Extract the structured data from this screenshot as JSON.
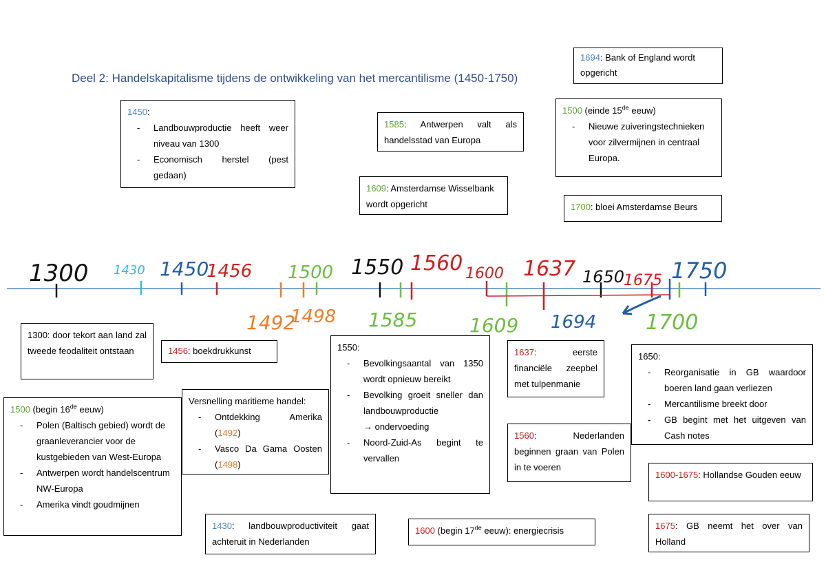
{
  "title": "Deel 2: Handelskapitalisme tijdens de ontwikkeling van het mercantilisme (1450-1750)",
  "top_boxes": {
    "b1450": {
      "year": "1450",
      "items": [
        "Landbouwproductie heeft weer niveau van 1300",
        "Economisch herstel (pest gedaan)"
      ]
    },
    "b1585": {
      "year": "1585",
      "text": ": Antwerpen valt als handelsstad van Europa"
    },
    "b1609": {
      "year": "1609",
      "text": ": Amsterdamse Wisselbank wordt opgericht"
    },
    "b1694": {
      "year": "1694",
      "text": ": Bank of England wordt opgericht"
    },
    "b1500e": {
      "year": "1500",
      "pre": " (einde 15",
      "sup": "de",
      "post": " eeuw)",
      "items": [
        "Nieuwe zuiveringstechnieken voor zilvermijnen in centraal Europa."
      ]
    },
    "b1700": {
      "year": "1700",
      "text": ": bloei Amsterdamse Beurs"
    }
  },
  "timeline": {
    "line_color": "#2e6fb5",
    "marks": [
      {
        "label": "1300",
        "color": "#111111",
        "pos": "top"
      },
      {
        "label": "1430",
        "color": "#35b8e8",
        "pos": "top"
      },
      {
        "label": "1450",
        "color": "#1f5fa8",
        "pos": "top"
      },
      {
        "label": "1456",
        "color": "#d41c1c",
        "pos": "top"
      },
      {
        "label": "1492",
        "color": "#f07d25",
        "pos": "bottom"
      },
      {
        "label": "1498",
        "color": "#f07d25",
        "pos": "bottom"
      },
      {
        "label": "1500",
        "color": "#6abf3a",
        "pos": "top"
      },
      {
        "label": "1550",
        "color": "#111111",
        "pos": "top"
      },
      {
        "label": "1585",
        "color": "#6abf3a",
        "pos": "bottom"
      },
      {
        "label": "1560",
        "color": "#d41c1c",
        "pos": "top"
      },
      {
        "label": "1600",
        "color": "#d41c1c",
        "pos": "top"
      },
      {
        "label": "1609",
        "color": "#6abf3a",
        "pos": "bottom"
      },
      {
        "label": "1637",
        "color": "#d41c1c",
        "pos": "top"
      },
      {
        "label": "1650",
        "color": "#111111",
        "pos": "top"
      },
      {
        "label": "1675",
        "color": "#d41c1c",
        "pos": "top"
      },
      {
        "label": "1694",
        "color": "#1f5fa8",
        "pos": "bottom"
      },
      {
        "label": "1700",
        "color": "#6abf3a",
        "pos": "bottom"
      },
      {
        "label": "1750",
        "color": "#1f5fa8",
        "pos": "top"
      }
    ]
  },
  "bottom_boxes": {
    "b1300": {
      "text": "1300: door tekort aan land zal tweede feodaliteit ontstaan"
    },
    "b1456": {
      "year": "1456",
      "text": ": boekdrukkunst"
    },
    "b1500b": {
      "year": "1500",
      "pre": " (begin 16",
      "sup": "de",
      "post": " eeuw)",
      "items": [
        "Polen (Baltisch gebied) wordt de graanleverancier voor de kustgebieden van West-Europa",
        "Antwerpen wordt handelscentrum NW-Europa",
        "Amerika vindt goudmijnen"
      ]
    },
    "vers": {
      "heading": "Versnelling maritieme handel:",
      "i1": "Ontdekking Amerika (",
      "y1": "1492",
      "c1": ")",
      "i2": "Vasco Da Gama Oosten (",
      "y2": "1498",
      "c2": ")"
    },
    "b1550": {
      "year": "1550:",
      "items": [
        "Bevolkingsaantal van 1350 wordt opnieuw bereikt",
        "Bevolking groeit sneller dan landbouwproductie",
        "Noord-Zuid-As begint te vervallen"
      ],
      "sub": "→ ondervoeding"
    },
    "b1430": {
      "year": "1430",
      "text": ": landbouwproductiviteit gaat achteruit in Nederlanden"
    },
    "b1637": {
      "year": "1637",
      "text": ": eerste financiële zeepbel met tulpenmanie"
    },
    "b1560": {
      "year": "1560",
      "text": ": Nederlanden beginnen graan van Polen in te voeren"
    },
    "b1600": {
      "year": "1600",
      "pre": " (begin 17",
      "sup": "de",
      "post": " eeuw): energiecrisis"
    },
    "b1650": {
      "year": "1650:",
      "items": [
        "Reorganisatie in GB waardoor boeren land gaan verliezen",
        "Mercantilisme breekt door",
        "GB begint met het uitgeven van Cash notes"
      ]
    },
    "b1600_1675": {
      "year": "1600-1675",
      "text": ": Hollandse Gouden eeuw"
    },
    "b1675": {
      "year": "1675",
      "text": ": GB neemt het over van Holland"
    }
  }
}
